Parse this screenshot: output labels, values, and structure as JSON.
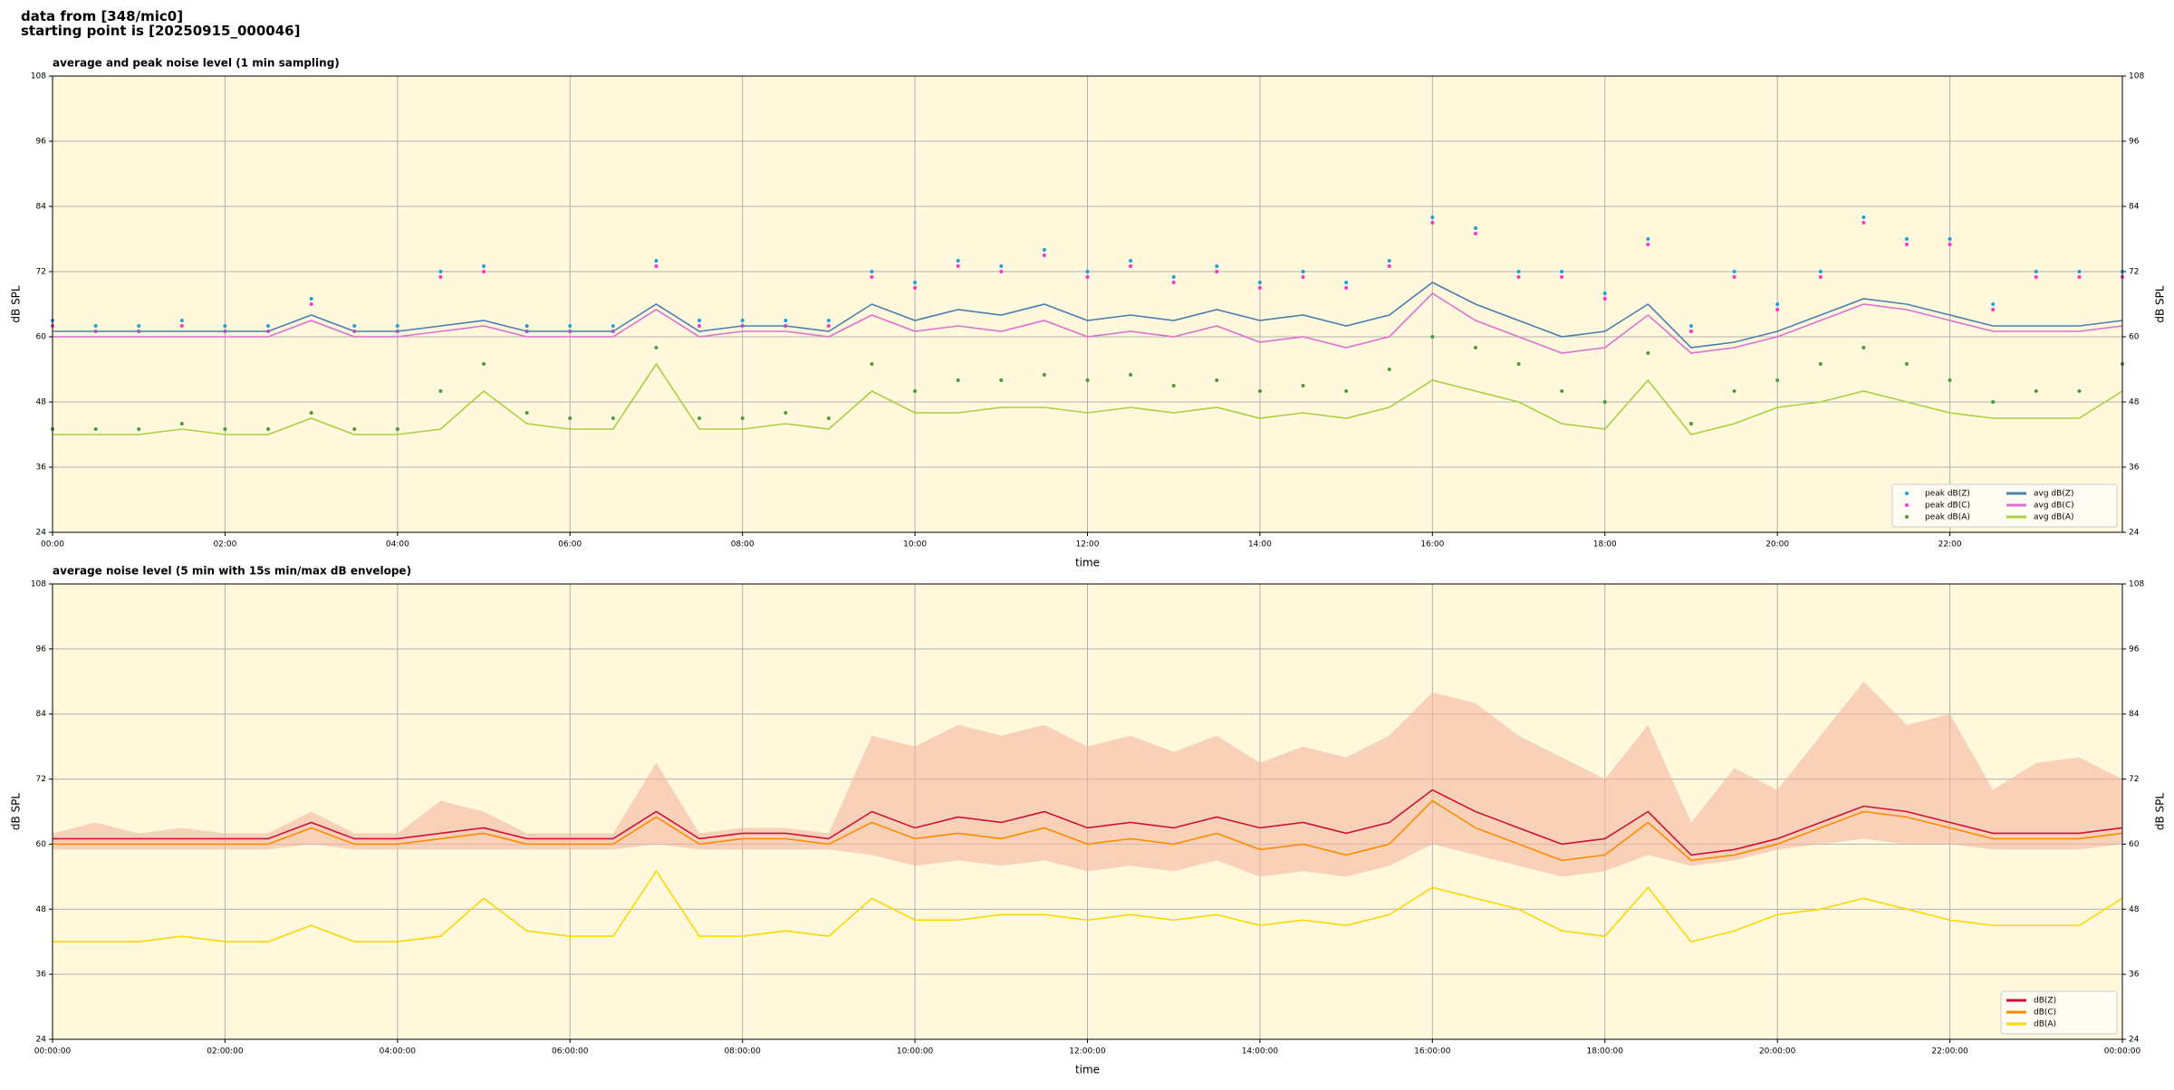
{
  "header": {
    "line1": "data from [348/mic0]",
    "line2": "starting point is [20250915_000046]"
  },
  "chart_data": [
    {
      "type": "line",
      "title": "average and peak noise level (1 min sampling)",
      "xlabel": "time",
      "ylabel": "dB SPL",
      "grid": true,
      "legend": "lower right",
      "legend_columns": 2,
      "x": [
        0,
        0.5,
        1,
        1.5,
        2,
        2.5,
        3,
        3.5,
        4,
        4.5,
        5,
        5.5,
        6,
        6.5,
        7,
        7.5,
        8,
        8.5,
        9,
        9.5,
        10,
        10.5,
        11,
        11.5,
        12,
        12.5,
        13,
        13.5,
        14,
        14.5,
        15,
        15.5,
        16,
        16.5,
        17,
        17.5,
        18,
        18.5,
        19,
        19.5,
        20,
        20.5,
        21,
        21.5,
        22,
        22.5,
        23,
        23.5,
        24
      ],
      "xlim": [
        0,
        24
      ],
      "xticks": [
        {
          "value": 0,
          "label": "00:00"
        },
        {
          "value": 2,
          "label": "02:00"
        },
        {
          "value": 4,
          "label": "04:00"
        },
        {
          "value": 6,
          "label": "06:00"
        },
        {
          "value": 8,
          "label": "08:00"
        },
        {
          "value": 10,
          "label": "10:00"
        },
        {
          "value": 12,
          "label": "12:00"
        },
        {
          "value": 14,
          "label": "14:00"
        },
        {
          "value": 16,
          "label": "16:00"
        },
        {
          "value": 18,
          "label": "18:00"
        },
        {
          "value": 20,
          "label": "20:00"
        },
        {
          "value": 22,
          "label": "22:00"
        }
      ],
      "ylim": [
        24,
        108
      ],
      "yticks": [
        24,
        36,
        48,
        60,
        72,
        84,
        96,
        108
      ],
      "series": [
        {
          "name": "peak dB(Z)",
          "kind": "scatter",
          "color": "#1f9fe0",
          "values": [
            63,
            62,
            62,
            63,
            62,
            62,
            67,
            62,
            62,
            72,
            73,
            62,
            62,
            62,
            74,
            63,
            63,
            63,
            63,
            72,
            70,
            74,
            73,
            76,
            72,
            74,
            71,
            73,
            70,
            72,
            70,
            74,
            82,
            80,
            72,
            72,
            68,
            78,
            62,
            72,
            66,
            72,
            82,
            78,
            78,
            66,
            72,
            72,
            72
          ]
        },
        {
          "name": "peak dB(C)",
          "kind": "scatter",
          "color": "#ff33cc",
          "values": [
            62,
            61,
            61,
            62,
            61,
            61,
            66,
            61,
            61,
            71,
            72,
            61,
            61,
            61,
            73,
            62,
            62,
            62,
            62,
            71,
            69,
            73,
            72,
            75,
            71,
            73,
            70,
            72,
            69,
            71,
            69,
            73,
            81,
            79,
            71,
            71,
            67,
            77,
            61,
            71,
            65,
            71,
            81,
            77,
            77,
            65,
            71,
            71,
            71
          ]
        },
        {
          "name": "peak dB(A)",
          "kind": "scatter",
          "color": "#4c9a3a",
          "values": [
            43,
            43,
            43,
            44,
            43,
            43,
            46,
            43,
            43,
            50,
            55,
            46,
            45,
            45,
            58,
            45,
            45,
            46,
            45,
            55,
            50,
            52,
            52,
            53,
            52,
            53,
            51,
            52,
            50,
            51,
            50,
            54,
            60,
            58,
            55,
            50,
            48,
            57,
            44,
            50,
            52,
            55,
            58,
            55,
            52,
            48,
            50,
            50,
            55
          ]
        },
        {
          "name": "avg dB(Z)",
          "kind": "line",
          "color": "#4a7fb0",
          "values": [
            61,
            61,
            61,
            61,
            61,
            61,
            64,
            61,
            61,
            62,
            63,
            61,
            61,
            61,
            66,
            61,
            62,
            62,
            61,
            66,
            63,
            65,
            64,
            66,
            63,
            64,
            63,
            65,
            63,
            64,
            62,
            64,
            70,
            66,
            63,
            60,
            61,
            66,
            58,
            59,
            61,
            64,
            67,
            66,
            64,
            62,
            62,
            62,
            63
          ]
        },
        {
          "name": "avg dB(C)",
          "kind": "line",
          "color": "#e070d0",
          "values": [
            60,
            60,
            60,
            60,
            60,
            60,
            63,
            60,
            60,
            61,
            62,
            60,
            60,
            60,
            65,
            60,
            61,
            61,
            60,
            64,
            61,
            62,
            61,
            63,
            60,
            61,
            60,
            62,
            59,
            60,
            58,
            60,
            68,
            63,
            60,
            57,
            58,
            64,
            57,
            58,
            60,
            63,
            66,
            65,
            63,
            61,
            61,
            61,
            62
          ]
        },
        {
          "name": "avg dB(A)",
          "kind": "line",
          "color": "#a8d040",
          "values": [
            42,
            42,
            42,
            43,
            42,
            42,
            45,
            42,
            42,
            43,
            50,
            44,
            43,
            43,
            55,
            43,
            43,
            44,
            43,
            50,
            46,
            46,
            47,
            47,
            46,
            47,
            46,
            47,
            45,
            46,
            45,
            47,
            52,
            50,
            48,
            44,
            43,
            52,
            42,
            44,
            47,
            48,
            50,
            48,
            46,
            45,
            45,
            45,
            50
          ]
        }
      ]
    },
    {
      "type": "line",
      "title": "average noise level (5 min with 15s min/max dB envelope)",
      "xlabel": "time",
      "ylabel": "dB SPL",
      "grid": true,
      "legend": "lower right",
      "legend_columns": 1,
      "x": [
        0,
        0.5,
        1,
        1.5,
        2,
        2.5,
        3,
        3.5,
        4,
        4.5,
        5,
        5.5,
        6,
        6.5,
        7,
        7.5,
        8,
        8.5,
        9,
        9.5,
        10,
        10.5,
        11,
        11.5,
        12,
        12.5,
        13,
        13.5,
        14,
        14.5,
        15,
        15.5,
        16,
        16.5,
        17,
        17.5,
        18,
        18.5,
        19,
        19.5,
        20,
        20.5,
        21,
        21.5,
        22,
        22.5,
        23,
        23.5,
        24
      ],
      "xlim": [
        0,
        24
      ],
      "xticks": [
        {
          "value": 0,
          "label": "00:00:00"
        },
        {
          "value": 2,
          "label": "02:00:00"
        },
        {
          "value": 4,
          "label": "04:00:00"
        },
        {
          "value": 6,
          "label": "06:00:00"
        },
        {
          "value": 8,
          "label": "08:00:00"
        },
        {
          "value": 10,
          "label": "10:00:00"
        },
        {
          "value": 12,
          "label": "12:00:00"
        },
        {
          "value": 14,
          "label": "14:00:00"
        },
        {
          "value": 16,
          "label": "16:00:00"
        },
        {
          "value": 18,
          "label": "18:00:00"
        },
        {
          "value": 20,
          "label": "20:00:00"
        },
        {
          "value": 22,
          "label": "22:00:00"
        },
        {
          "value": 24,
          "label": "00:00:00"
        }
      ],
      "ylim": [
        24,
        108
      ],
      "yticks": [
        24,
        36,
        48,
        60,
        72,
        84,
        96,
        108
      ],
      "envelope": {
        "color": "#f4b8a0",
        "low": [
          59,
          59,
          59,
          59,
          59,
          59,
          60,
          59,
          59,
          59,
          59,
          59,
          59,
          59,
          60,
          59,
          59,
          59,
          59,
          58,
          56,
          57,
          56,
          57,
          55,
          56,
          55,
          57,
          54,
          55,
          54,
          56,
          60,
          58,
          56,
          54,
          55,
          58,
          56,
          57,
          59,
          60,
          61,
          60,
          60,
          59,
          59,
          59,
          60
        ],
        "high": [
          62,
          64,
          62,
          63,
          62,
          62,
          66,
          62,
          62,
          68,
          66,
          62,
          62,
          62,
          75,
          62,
          63,
          63,
          62,
          80,
          78,
          82,
          80,
          82,
          78,
          80,
          77,
          80,
          75,
          78,
          76,
          80,
          88,
          86,
          80,
          76,
          72,
          82,
          64,
          74,
          70,
          80,
          90,
          82,
          84,
          70,
          75,
          76,
          72
        ]
      },
      "series": [
        {
          "name": "dB(Z)",
          "kind": "line",
          "color": "#d0103a",
          "values": [
            61,
            61,
            61,
            61,
            61,
            61,
            64,
            61,
            61,
            62,
            63,
            61,
            61,
            61,
            66,
            61,
            62,
            62,
            61,
            66,
            63,
            65,
            64,
            66,
            63,
            64,
            63,
            65,
            63,
            64,
            62,
            64,
            70,
            66,
            63,
            60,
            61,
            66,
            58,
            59,
            61,
            64,
            67,
            66,
            64,
            62,
            62,
            62,
            63
          ]
        },
        {
          "name": "dB(C)",
          "kind": "line",
          "color": "#ff8c00",
          "values": [
            60,
            60,
            60,
            60,
            60,
            60,
            63,
            60,
            60,
            61,
            62,
            60,
            60,
            60,
            65,
            60,
            61,
            61,
            60,
            64,
            61,
            62,
            61,
            63,
            60,
            61,
            60,
            62,
            59,
            60,
            58,
            60,
            68,
            63,
            60,
            57,
            58,
            64,
            57,
            58,
            60,
            63,
            66,
            65,
            63,
            61,
            61,
            61,
            62
          ]
        },
        {
          "name": "dB(A)",
          "kind": "line",
          "color": "#ffd700",
          "values": [
            42,
            42,
            42,
            43,
            42,
            42,
            45,
            42,
            42,
            43,
            50,
            44,
            43,
            43,
            55,
            43,
            43,
            44,
            43,
            50,
            46,
            46,
            47,
            47,
            46,
            47,
            46,
            47,
            45,
            46,
            45,
            47,
            52,
            50,
            48,
            44,
            43,
            52,
            42,
            44,
            47,
            48,
            50,
            48,
            46,
            45,
            45,
            45,
            50
          ]
        }
      ]
    }
  ]
}
